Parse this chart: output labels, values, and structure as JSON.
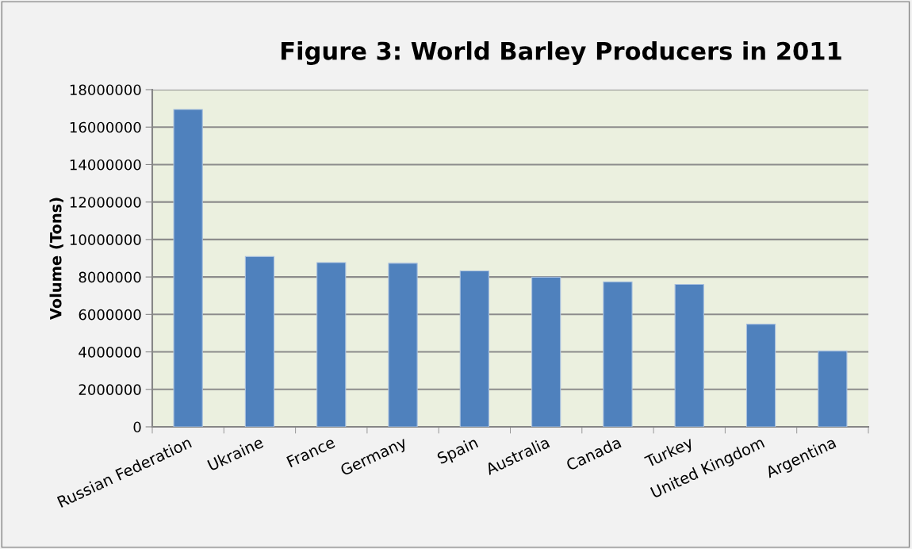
{
  "chart_data": {
    "type": "bar",
    "title": "Figure 3: World Barley Producers in 2011",
    "ylabel": "Volume (Tons)",
    "categories": [
      "Russian Federation",
      "Ukraine",
      "France",
      "Germany",
      "Spain",
      "Australia",
      "Canada",
      "Turkey",
      "United Kingdom",
      "Argentina"
    ],
    "values": [
      16940000,
      9090000,
      8770000,
      8730000,
      8320000,
      7990000,
      7740000,
      7600000,
      5480000,
      4050000
    ],
    "color": "#4f81bd",
    "ylim": [
      0,
      18000000
    ],
    "yticks": [
      0,
      2000000,
      4000000,
      6000000,
      8000000,
      10000000,
      12000000,
      14000000,
      16000000,
      18000000
    ],
    "grid": "y",
    "legend": false
  }
}
